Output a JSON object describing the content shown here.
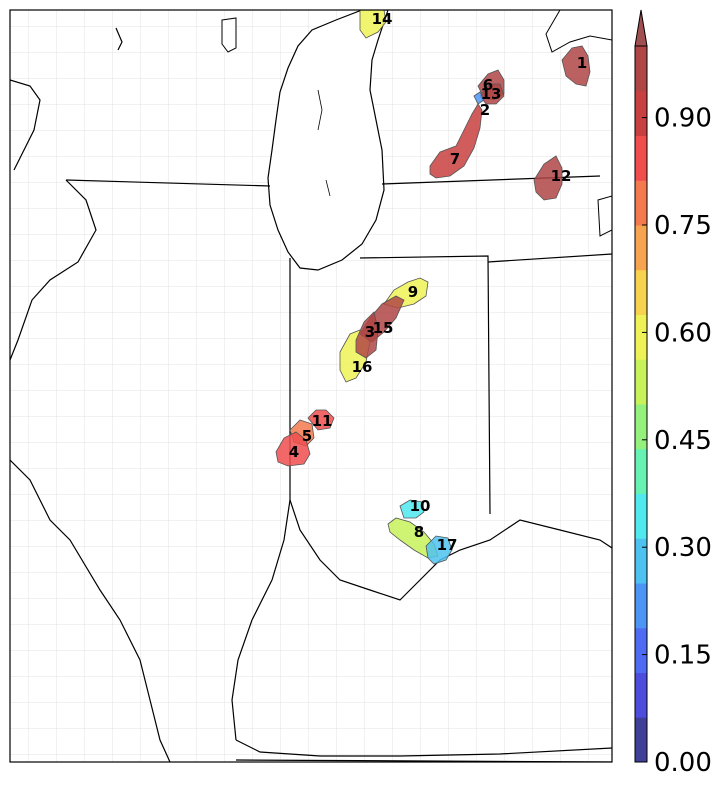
{
  "colorbar": {
    "ticks": [
      "0.00",
      "0.15",
      "0.30",
      "0.45",
      "0.60",
      "0.75",
      "0.90"
    ],
    "tick_values": [
      0.0,
      0.15,
      0.3,
      0.45,
      0.6,
      0.75,
      0.9
    ],
    "range": [
      0,
      1
    ],
    "extend": "max",
    "colors": [
      "#3f3f99",
      "#4c4cdd",
      "#4d6bf3",
      "#4d95f4",
      "#4dc2f0",
      "#4fe9ee",
      "#67f2b3",
      "#94f27c",
      "#c7f25a",
      "#eef256",
      "#f7d24f",
      "#f6a44f",
      "#f4794f",
      "#f04d4d",
      "#c94040",
      "#b04545"
    ],
    "over_color": "#a05050"
  },
  "objects": [
    {
      "label": "1",
      "value": 0.98
    },
    {
      "label": "2",
      "value": 0.2
    },
    {
      "label": "3",
      "value": 0.96
    },
    {
      "label": "4",
      "value": 0.85
    },
    {
      "label": "5",
      "value": 0.8
    },
    {
      "label": "6",
      "value": 0.97
    },
    {
      "label": "7",
      "value": 0.88
    },
    {
      "label": "8",
      "value": 0.55
    },
    {
      "label": "9",
      "value": 0.62
    },
    {
      "label": "10",
      "value": 0.35
    },
    {
      "label": "11",
      "value": 0.85
    },
    {
      "label": "12",
      "value": 0.98
    },
    {
      "label": "13",
      "value": 0.97
    },
    {
      "label": "14",
      "value": 0.62
    },
    {
      "label": "15",
      "value": 0.95
    },
    {
      "label": "16",
      "value": 0.62
    },
    {
      "label": "17",
      "value": 0.3
    }
  ]
}
